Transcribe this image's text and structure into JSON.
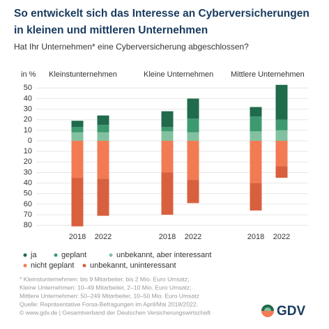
{
  "chart_data": {
    "type": "bar",
    "title": [
      "So entwickelt sich das Interesse an Cyberversicherungen",
      "in kleinen und mittleren Unternehmen"
    ],
    "subtitle": "Hat Ihr Unternehmen* eine Cyberversicherung abgeschlossen?",
    "ylabel": "in %",
    "ylim": [
      -85,
      55
    ],
    "yticks": [
      50,
      40,
      30,
      20,
      10,
      0,
      {
        "value": -10,
        "label": "10"
      },
      {
        "value": -20,
        "label": "20"
      },
      {
        "value": -30,
        "label": "30"
      },
      {
        "value": -40,
        "label": "40"
      },
      {
        "value": -50,
        "label": "50"
      },
      {
        "value": -60,
        "label": "60"
      },
      {
        "value": -70,
        "label": "70"
      },
      {
        "value": -80,
        "label": "80"
      }
    ],
    "grid": true,
    "panels": [
      {
        "title": "Kleinstunternehmen",
        "categories": [
          "2018",
          "2022"
        ]
      },
      {
        "title": "Kleine Unternehmen",
        "categories": [
          "2018",
          "2022"
        ]
      },
      {
        "title": "Mittlere Unternehmen",
        "categories": [
          "2018",
          "2022"
        ]
      }
    ],
    "series": [
      {
        "name": "ja",
        "color": "#1f6b4c",
        "values": [
          [
            6,
            9
          ],
          [
            15,
            19
          ],
          [
            9,
            33
          ]
        ]
      },
      {
        "name": "geplant",
        "color": "#3d9a70",
        "values": [
          [
            5,
            7
          ],
          [
            4,
            13
          ],
          [
            14,
            10
          ]
        ]
      },
      {
        "name": "unbekannt, aber interessant",
        "color": "#82c1a0",
        "values": [
          [
            8,
            8
          ],
          [
            9,
            8
          ],
          [
            9,
            10
          ]
        ]
      },
      {
        "name": "nicht geplant",
        "color": "#f27b54",
        "values": [
          [
            -35,
            -36
          ],
          [
            -30,
            -37
          ],
          [
            -40,
            -24
          ]
        ]
      },
      {
        "name": "unbekannt, uninteressant",
        "color": "#d9603e",
        "values": [
          [
            -46,
            -35
          ],
          [
            -40,
            -22
          ],
          [
            -26,
            -11
          ]
        ]
      }
    ]
  },
  "notes": [
    "* Kleinstunternehmen: bis 9 Mitarbeiter, bis 2 Mio. Euro Umsatz;",
    "Kleine Unternehmen: 10–49 Mitarbeiter, 2–10 Mio. Euro Umsatz;",
    "Mittlere Unternehmen: 50–249 Mitarbeiter, 10–50 Mio. Euro Umsatz",
    "Quelle: Repräsentative Forsa-Befragungen im April/Mai 2018/2022."
  ],
  "footer": "© www.gdv.de  |  Gesamtverband der Deutschen Versicherungswirtschaft",
  "logo": "GDV"
}
